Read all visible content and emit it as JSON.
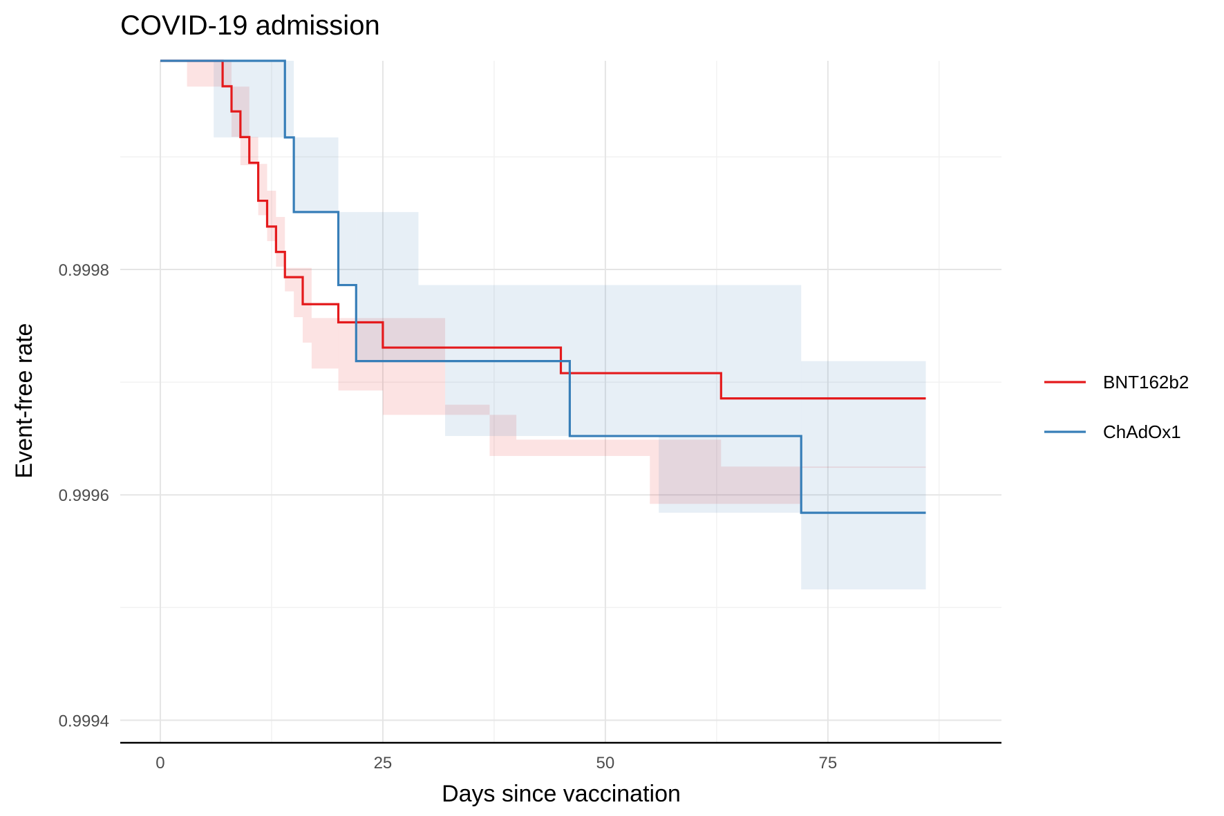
{
  "chart_data": {
    "type": "line",
    "subtype": "kaplan-meier step with confidence bands",
    "title": "COVID-19 admission",
    "xlabel": "Days since vaccination",
    "ylabel": "Event-free rate",
    "xlim": [
      -4.5,
      94.5
    ],
    "ylim": [
      0.99938,
      0.9999852
    ],
    "xticks": [
      0,
      25,
      50,
      75
    ],
    "xtick_labels": [
      "0",
      "25",
      "50",
      "75"
    ],
    "yticks": [
      0.9994,
      0.9996,
      0.9998
    ],
    "ytick_labels": [
      "0.9994",
      "0.9996",
      "0.9998"
    ],
    "grid": true,
    "legend_position": "right",
    "series": [
      {
        "name": "BNT162b2",
        "color": "#e41a1c",
        "band_fill": "#fbe4e3",
        "steps": [
          [
            0,
            0.9999852
          ],
          [
            7,
            0.9999626
          ],
          [
            8,
            0.9999403
          ],
          [
            9,
            0.9999175
          ],
          [
            10,
            0.9998947
          ],
          [
            11,
            0.999861
          ],
          [
            12,
            0.9998381
          ],
          [
            13,
            0.9998156
          ],
          [
            14,
            0.9997932
          ],
          [
            16,
            0.9997692
          ],
          [
            20,
            0.9997531
          ],
          [
            25,
            0.9997307
          ],
          [
            45,
            0.999708
          ],
          [
            63,
            0.9996856
          ],
          [
            86,
            0.9996856
          ]
        ],
        "band": [
          [
            0,
            0.9999852,
            0.9999852
          ],
          [
            3,
            0.9999852,
            0.9999623
          ],
          [
            7,
            0.9999852,
            0.9999623
          ],
          [
            8,
            0.9999623,
            0.9999177
          ],
          [
            9,
            0.9999623,
            0.9998926
          ],
          [
            10,
            0.9999177,
            0.9998926
          ],
          [
            11,
            0.9998937,
            0.9998482
          ],
          [
            12,
            0.9998699,
            0.9998252
          ],
          [
            13,
            0.9998466,
            0.9998025
          ],
          [
            14,
            0.9998014,
            0.9997806
          ],
          [
            15,
            0.9998014,
            0.9997577
          ],
          [
            16,
            0.9998014,
            0.9997351
          ],
          [
            17,
            0.9997569,
            0.9997121
          ],
          [
            20,
            0.9997569,
            0.9996926
          ],
          [
            25,
            0.9997569,
            0.999671
          ],
          [
            32,
            0.99968,
            0.999671
          ],
          [
            37,
            0.9996345,
            0.999671
          ],
          [
            40,
            0.9996345,
            0.999649
          ],
          [
            55,
            0.999592,
            0.999649
          ],
          [
            63,
            0.999592,
            0.9996251
          ],
          [
            72,
            0.999624,
            0.9996251
          ],
          [
            86,
            0.999624,
            0.9996251
          ]
        ]
      },
      {
        "name": "ChAdOx1",
        "color": "#377eb8",
        "band_fill": "#e6eef5",
        "steps": [
          [
            0,
            0.9999852
          ],
          [
            14,
            0.9999172
          ],
          [
            15,
            0.999851
          ],
          [
            20,
            0.9997862
          ],
          [
            22,
            0.9997187
          ],
          [
            46,
            0.9996522
          ],
          [
            72,
            0.9995841
          ],
          [
            86,
            0.9995841
          ]
        ],
        "band": [
          [
            0,
            0.9999852,
            0.9999852
          ],
          [
            6,
            0.9999852,
            0.9999172
          ],
          [
            15,
            0.9999172,
            0.999851
          ],
          [
            20,
            0.999851,
            0.9997862
          ],
          [
            22,
            0.999851,
            0.9997187
          ],
          [
            29,
            0.9997862,
            0.9997187
          ],
          [
            32,
            0.9997862,
            0.9996522
          ],
          [
            56,
            0.9997862,
            0.9995841
          ],
          [
            72,
            0.9997187,
            0.9995161
          ],
          [
            86,
            0.9997187,
            0.9995161
          ]
        ]
      }
    ]
  }
}
